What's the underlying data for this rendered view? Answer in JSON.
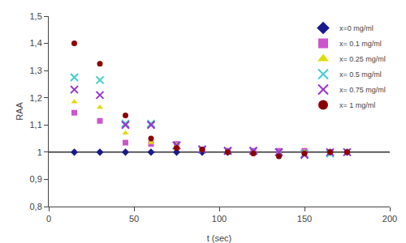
{
  "chart_data": {
    "type": "scatter",
    "xlabel": "t (sec)",
    "ylabel": "RAA",
    "xlim": [
      0,
      200
    ],
    "ylim": [
      0.8,
      1.5
    ],
    "xticks": [
      0,
      50,
      100,
      150,
      200
    ],
    "yticks": [
      {
        "value": 0.8,
        "label": "0,8"
      },
      {
        "value": 0.9,
        "label": "0,9"
      },
      1,
      {
        "value": 1.1,
        "label": "1,1"
      },
      {
        "value": 1.2,
        "label": "1,2"
      },
      {
        "value": 1.3,
        "label": "1,3"
      },
      {
        "value": 1.4,
        "label": "1,4"
      },
      {
        "value": 1.5,
        "label": "1,5"
      }
    ],
    "grid": false,
    "legend": "upper right",
    "reference_line": {
      "y": 1.0,
      "color": "#333333"
    },
    "series": [
      {
        "name": "x=0 mg/ml",
        "color": "#1a1a8c",
        "marker": "diamond",
        "x": [
          15,
          30,
          45,
          60,
          75,
          90,
          105,
          120,
          135,
          150,
          165,
          175
        ],
        "values": [
          1.0,
          1.0,
          1.0,
          1.0,
          1.0,
          1.0,
          1.0,
          1.0,
          1.0,
          1.0,
          1.0,
          1.0
        ]
      },
      {
        "name": "x= 0.1 mg/ml",
        "color": "#cc55cc",
        "marker": "square",
        "x": [
          15,
          30,
          45,
          60,
          75,
          90,
          105,
          120,
          135,
          150,
          165,
          175
        ],
        "values": [
          1.145,
          1.115,
          1.035,
          1.03,
          1.03,
          1.01,
          1.005,
          1.005,
          1.005,
          1.005,
          1.0,
          1.0
        ]
      },
      {
        "name": "x= 0.25 mg/ml",
        "color": "#dddd00",
        "marker": "triangle",
        "x": [
          15,
          30,
          45,
          60,
          75,
          90,
          105,
          120,
          135,
          150,
          165,
          175
        ],
        "values": [
          1.185,
          1.165,
          1.07,
          1.035,
          1.025,
          1.005,
          1.0,
          0.995,
          0.995,
          1.0,
          1.0,
          1.0
        ]
      },
      {
        "name": "x= 0.5 mg/ml",
        "color": "#44cccc",
        "marker": "x",
        "x": [
          15,
          30,
          45,
          60,
          75,
          90,
          105,
          120,
          135,
          150,
          165,
          175
        ],
        "values": [
          1.275,
          1.265,
          1.105,
          1.105,
          1.025,
          1.01,
          1.005,
          1.005,
          1.0,
          0.995,
          0.995,
          1.0
        ]
      },
      {
        "name": "x= 0.75 mg/ml",
        "color": "#9933cc",
        "marker": "x",
        "x": [
          15,
          30,
          45,
          60,
          75,
          90,
          105,
          120,
          135,
          150,
          165,
          175
        ],
        "values": [
          1.23,
          1.21,
          1.1,
          1.1,
          1.025,
          1.01,
          1.005,
          1.005,
          1.0,
          0.99,
          1.0,
          1.0
        ]
      },
      {
        "name": "x= 1 mg/ml",
        "color": "#8b0000",
        "marker": "circle",
        "x": [
          15,
          30,
          45,
          60,
          75,
          90,
          105,
          120,
          135,
          150,
          165,
          175
        ],
        "values": [
          1.4,
          1.325,
          1.135,
          1.05,
          1.015,
          1.01,
          1.0,
          0.995,
          0.985,
          0.995,
          1.0,
          1.0
        ]
      }
    ]
  }
}
